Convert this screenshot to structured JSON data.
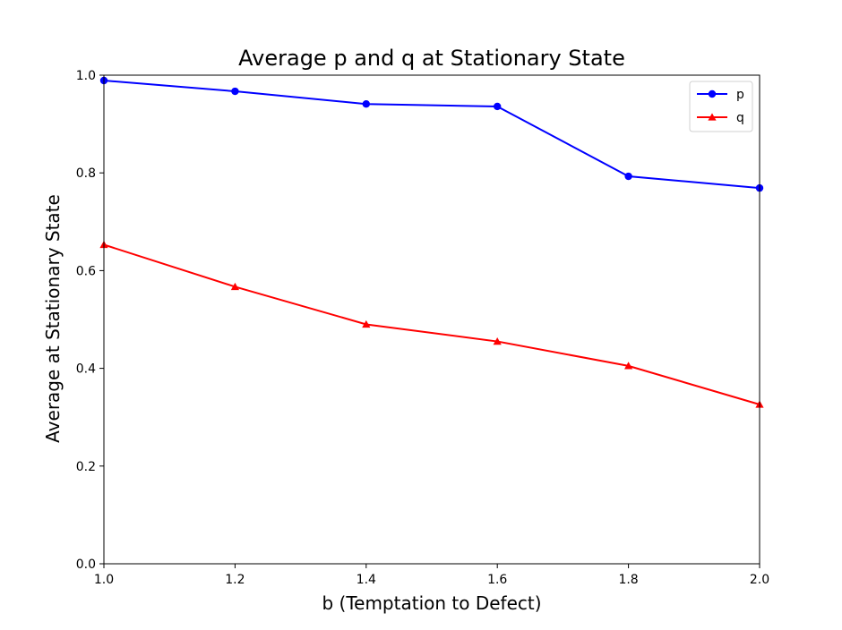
{
  "chart_data": {
    "type": "line",
    "title": "Average p and q at Stationary State",
    "xlabel": "b (Temptation to Defect)",
    "ylabel": "Average at Stationary State",
    "xlim": [
      1.0,
      2.0
    ],
    "ylim": [
      0.0,
      1.0
    ],
    "x": [
      1.0,
      1.2,
      1.4,
      1.6,
      1.8,
      2.0
    ],
    "xticks": [
      "1.0",
      "1.2",
      "1.4",
      "1.6",
      "1.8",
      "2.0"
    ],
    "yticks": [
      "0.0",
      "0.2",
      "0.4",
      "0.6",
      "0.8",
      "1.0"
    ],
    "grid": false,
    "legend_position": "top-right",
    "series": [
      {
        "name": "p",
        "values": [
          0.989,
          0.967,
          0.941,
          0.936,
          0.793,
          0.769
        ],
        "color": "#0000ff",
        "marker": "circle"
      },
      {
        "name": "q",
        "values": [
          0.653,
          0.567,
          0.49,
          0.455,
          0.405,
          0.326
        ],
        "color": "#ff0000",
        "marker": "triangle"
      }
    ]
  }
}
